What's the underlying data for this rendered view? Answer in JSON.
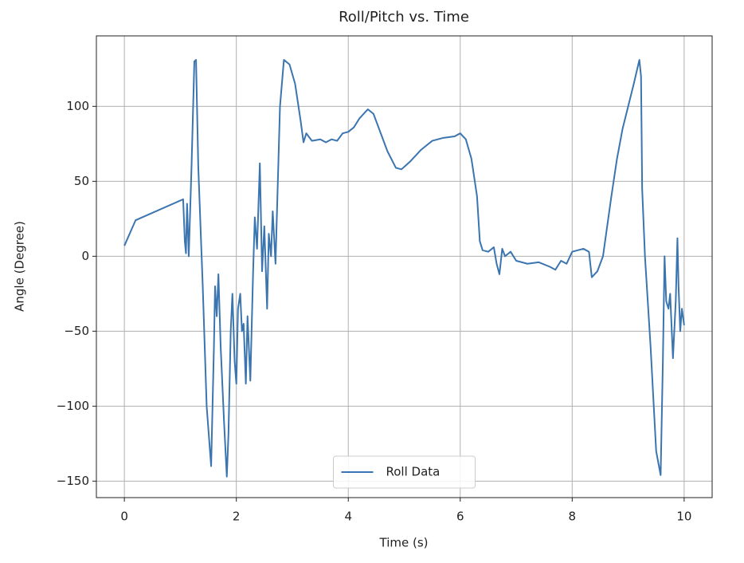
{
  "chart_data": {
    "type": "line",
    "title": "Roll/Pitch vs. Time",
    "x_label": "Time (s)",
    "y_label": "Angle (Degree)",
    "x": [
      0,
      0.2,
      1.05,
      1.08,
      1.1,
      1.12,
      1.15,
      1.2,
      1.25,
      1.28,
      1.32,
      1.4,
      1.47,
      1.55,
      1.6,
      1.62,
      1.65,
      1.68,
      1.72,
      1.78,
      1.83,
      1.86,
      1.9,
      1.93,
      1.97,
      2.0,
      2.03,
      2.07,
      2.1,
      2.13,
      2.17,
      2.2,
      2.25,
      2.3,
      2.33,
      2.37,
      2.42,
      2.46,
      2.5,
      2.55,
      2.58,
      2.62,
      2.65,
      2.7,
      2.78,
      2.85,
      2.95,
      3.05,
      3.15,
      3.2,
      3.25,
      3.35,
      3.5,
      3.6,
      3.7,
      3.8,
      3.9,
      4.0,
      4.1,
      4.2,
      4.3,
      4.35,
      4.45,
      4.55,
      4.7,
      4.85,
      4.95,
      5.1,
      5.3,
      5.5,
      5.7,
      5.9,
      6.0,
      6.1,
      6.2,
      6.3,
      6.35,
      6.4,
      6.5,
      6.6,
      6.65,
      6.7,
      6.75,
      6.8,
      6.9,
      7.0,
      7.2,
      7.4,
      7.6,
      7.7,
      7.8,
      7.9,
      8.0,
      8.2,
      8.3,
      8.35,
      8.45,
      8.55,
      8.7,
      8.8,
      8.9,
      9.0,
      9.1,
      9.2,
      9.23,
      9.25,
      9.3,
      9.4,
      9.5,
      9.58,
      9.62,
      9.65,
      9.68,
      9.72,
      9.75,
      9.8,
      9.85,
      9.88,
      9.9,
      9.93,
      9.96,
      10.0
    ],
    "series": [
      {
        "name": "Roll Data",
        "color": "#3b75af",
        "values": [
          7,
          24,
          38,
          10,
          2,
          35,
          0,
          60,
          130,
          131,
          60,
          -20,
          -100,
          -140,
          -60,
          -20,
          -40,
          -12,
          -60,
          -110,
          -147,
          -118,
          -50,
          -25,
          -70,
          -85,
          -35,
          -25,
          -50,
          -45,
          -85,
          -40,
          -83,
          -10,
          26,
          5,
          62,
          -10,
          20,
          -35,
          15,
          0,
          30,
          -5,
          100,
          131,
          128,
          115,
          90,
          76,
          82,
          77,
          78,
          76,
          78,
          77,
          82,
          83,
          86,
          92,
          96,
          98,
          95,
          85,
          70,
          59,
          58,
          63,
          71,
          77,
          79,
          80,
          82,
          78,
          65,
          40,
          10,
          4,
          3,
          6,
          -5,
          -12,
          5,
          0,
          3,
          -3,
          -5,
          -4,
          -7,
          -9,
          -3,
          -5,
          3,
          5,
          3,
          -14,
          -10,
          0,
          40,
          65,
          85,
          100,
          115,
          131,
          120,
          45,
          0,
          -60,
          -130,
          -146,
          -70,
          0,
          -30,
          -35,
          -25,
          -68,
          -30,
          12,
          -20,
          -50,
          -35,
          -46
        ]
      }
    ],
    "xlim": [
      -0.5,
      10.5
    ],
    "ylim": [
      -161,
      147
    ],
    "xticks": [
      0,
      2,
      4,
      6,
      8,
      10
    ],
    "yticks": [
      {
        "value": -150,
        "label": "−150"
      },
      {
        "value": -100,
        "label": "−100"
      },
      {
        "value": -50,
        "label": "−50"
      },
      0,
      50,
      100
    ],
    "grid": true,
    "legend": "lower center"
  }
}
